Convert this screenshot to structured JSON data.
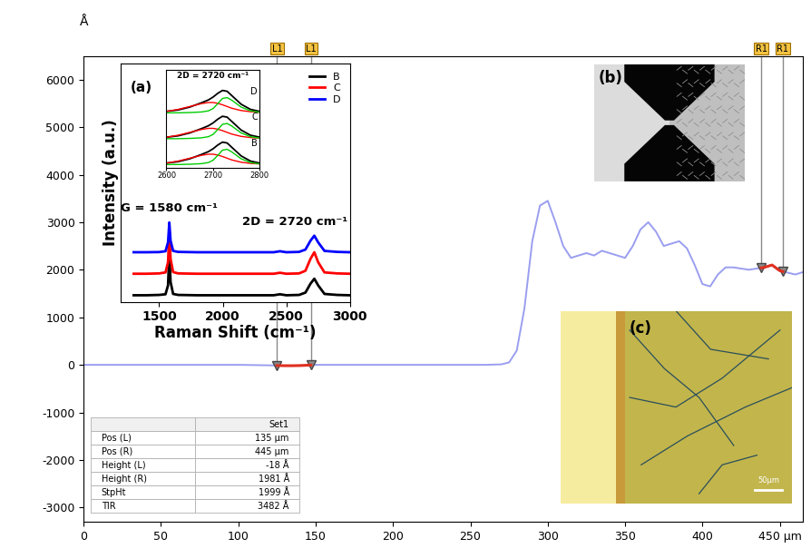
{
  "chart_data": [
    {
      "type": "line",
      "ylabel": "Å",
      "color": "#9a9ef0",
      "x": [
        0,
        20,
        40,
        60,
        80,
        100,
        120,
        130,
        135,
        140,
        150,
        170,
        200,
        230,
        260,
        270,
        275,
        280,
        285,
        290,
        295,
        300,
        305,
        310,
        315,
        320,
        325,
        330,
        335,
        340,
        345,
        350,
        355,
        360,
        365,
        370,
        375,
        380,
        385,
        390,
        395,
        400,
        405,
        410,
        415,
        420,
        430,
        440,
        445,
        450,
        460,
        465
      ],
      "values": [
        0,
        0,
        0,
        0,
        0,
        0,
        -10,
        -18,
        -18,
        -15,
        0,
        0,
        0,
        0,
        0,
        10,
        50,
        300,
        1200,
        2600,
        3350,
        3450,
        3000,
        2500,
        2250,
        2300,
        2350,
        2300,
        2400,
        2350,
        2300,
        2250,
        2500,
        2850,
        3000,
        2800,
        2500,
        2550,
        2600,
        2450,
        2100,
        1700,
        1650,
        1900,
        2050,
        2050,
        2000,
        2050,
        2100,
        1980,
        1900,
        1950
      ],
      "xlim": [
        0,
        465
      ],
      "ylim": [
        -3300,
        6500
      ],
      "xticks": [
        0,
        50,
        100,
        150,
        200,
        250,
        300,
        350,
        400,
        {
          "value": 450,
          "label": "450 µm"
        }
      ],
      "yticks": [
        -3000,
        -2000,
        -1000,
        0,
        1000,
        2000,
        3000,
        4000,
        5000,
        6000
      ],
      "annotations": {
        "cursors": [
          {
            "label": "L1",
            "x": 125
          },
          {
            "label": "L1",
            "x": 147
          },
          {
            "label": "R1",
            "x": 438
          },
          {
            "label": "R1",
            "x": 452
          }
        ]
      },
      "table": {
        "header": [
          "Set1"
        ],
        "rows": [
          [
            "Pos (L)",
            "135 µm"
          ],
          [
            "Pos (R)",
            "445 µm"
          ],
          [
            "Height (L)",
            "-18 Å"
          ],
          [
            "Height (R)",
            "1981 Å"
          ],
          [
            "StpHt",
            "1999 Å"
          ],
          [
            "TIR",
            "3482 Å"
          ]
        ]
      }
    },
    {
      "type": "line",
      "title": "(a)",
      "xlabel": "Raman Shift (cm⁻¹)",
      "ylabel": "Intensity (a.u.)",
      "x": [
        1300,
        1400,
        1500,
        1550,
        1570,
        1580,
        1590,
        1610,
        1650,
        1800,
        2000,
        2200,
        2400,
        2450,
        2500,
        2600,
        2650,
        2690,
        2720,
        2750,
        2800,
        2900,
        3000
      ],
      "series": [
        {
          "name": "B",
          "color": "#000000",
          "values": [
            0,
            0,
            10,
            30,
            300,
            1300,
            400,
            40,
            10,
            0,
            0,
            0,
            0,
            30,
            0,
            10,
            80,
            350,
            500,
            300,
            40,
            10,
            0
          ]
        },
        {
          "name": "C",
          "color": "#ff0000",
          "values": [
            650,
            650,
            660,
            690,
            1000,
            1900,
            1100,
            700,
            660,
            650,
            650,
            650,
            650,
            680,
            650,
            660,
            740,
            1100,
            1300,
            1000,
            690,
            660,
            650
          ]
        },
        {
          "name": "D",
          "color": "#0000ff",
          "values": [
            1300,
            1300,
            1305,
            1330,
            1600,
            2200,
            1650,
            1340,
            1310,
            1300,
            1300,
            1300,
            1300,
            1330,
            1300,
            1310,
            1380,
            1650,
            1800,
            1600,
            1340,
            1310,
            1300
          ]
        }
      ],
      "xlim": [
        1200,
        3000
      ],
      "ylim": [
        -200,
        7000
      ],
      "xticks": [
        1500,
        2000,
        2500,
        3000
      ],
      "yticks": [],
      "tick_labels": "x",
      "legend": "upper right",
      "annotations": [
        "G = 1580 cm⁻¹",
        "2D = 2720 cm⁻¹"
      ]
    },
    {
      "type": "line",
      "title": "2D = 2720 cm⁻¹",
      "x": [
        2600,
        2625,
        2650,
        2675,
        2690,
        2700,
        2710,
        2720,
        2730,
        2740,
        2760,
        2780,
        2800
      ],
      "series": [
        {
          "name": "B",
          "color": "#000000",
          "values": [
            0.05,
            0.1,
            0.2,
            0.35,
            0.45,
            0.55,
            0.68,
            0.78,
            0.75,
            0.6,
            0.3,
            0.12,
            0.05
          ],
          "components": [
            {
              "color": "#ff0000",
              "values": [
                0.05,
                0.12,
                0.22,
                0.32,
                0.36,
                0.36,
                0.33,
                0.28,
                0.22,
                0.16,
                0.08,
                0.04,
                0.02
              ]
            },
            {
              "color": "#00cc00",
              "values": [
                0.0,
                0.0,
                0.01,
                0.03,
                0.07,
                0.15,
                0.32,
                0.5,
                0.53,
                0.44,
                0.2,
                0.07,
                0.02
              ]
            }
          ]
        },
        {
          "name": "C",
          "color": "#000000",
          "values": [
            0.95,
            1.0,
            1.1,
            1.25,
            1.35,
            1.45,
            1.58,
            1.68,
            1.65,
            1.5,
            1.2,
            1.02,
            0.95
          ],
          "components": [
            {
              "color": "#ff0000",
              "values": [
                0.95,
                1.02,
                1.12,
                1.22,
                1.26,
                1.26,
                1.23,
                1.18,
                1.12,
                1.06,
                0.98,
                0.94,
                0.92
              ]
            },
            {
              "color": "#00cc00",
              "values": [
                0.9,
                0.9,
                0.91,
                0.93,
                0.97,
                1.05,
                1.22,
                1.4,
                1.43,
                1.34,
                1.1,
                0.97,
                0.92
              ]
            }
          ]
        },
        {
          "name": "D",
          "color": "#000000",
          "values": [
            1.85,
            1.9,
            2.0,
            2.15,
            2.25,
            2.35,
            2.48,
            2.58,
            2.55,
            2.4,
            2.1,
            1.92,
            1.85
          ],
          "components": [
            {
              "color": "#ff0000",
              "values": [
                1.85,
                1.92,
                2.02,
                2.12,
                2.16,
                2.16,
                2.13,
                2.08,
                2.02,
                1.96,
                1.88,
                1.84,
                1.82
              ]
            },
            {
              "color": "#00cc00",
              "values": [
                1.8,
                1.8,
                1.81,
                1.83,
                1.87,
                1.95,
                2.12,
                2.3,
                2.33,
                2.24,
                2.0,
                1.87,
                1.82
              ]
            }
          ]
        }
      ],
      "xlim": [
        2600,
        2800
      ],
      "ylim": [
        -0.1,
        3.3
      ],
      "xticks": [
        2600,
        2700,
        2800
      ],
      "yticks": [],
      "tick_labels": "x"
    }
  ],
  "images": [
    {
      "label": "(b)"
    },
    {
      "label": "(c)",
      "scale_bar": "50µm"
    }
  ]
}
